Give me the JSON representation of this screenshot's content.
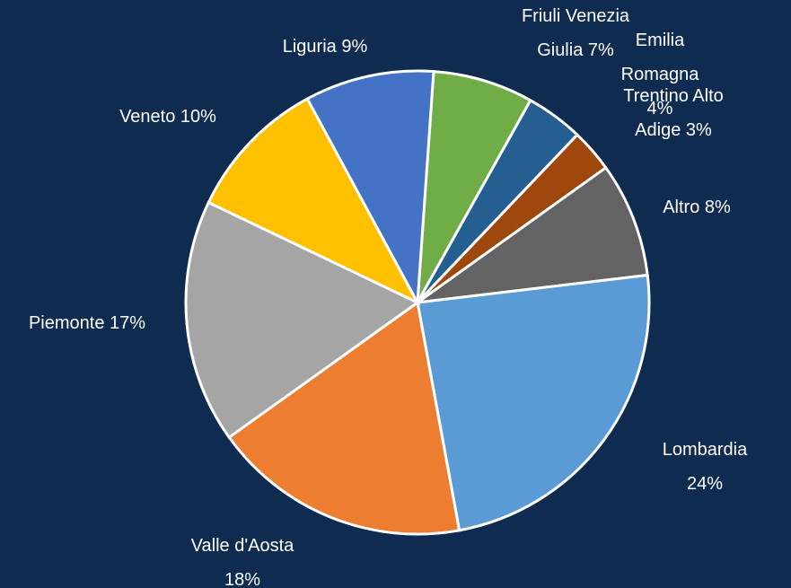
{
  "chart_data": {
    "type": "pie",
    "start_angle": 4,
    "value_labels": [
      "Friuli Venezia\nGiulia 7%",
      "Emilia Romagna\n4%",
      "Trentino Alto\nAdige 3%",
      "Altro  8%",
      "Lombardia 24%",
      "Valle d'Aosta\n18%",
      "Piemonte 17%",
      "Veneto 10%",
      "Liguria 9%"
    ],
    "values": [
      7,
      4,
      3,
      8,
      24,
      18,
      17,
      10,
      9
    ],
    "colors": [
      "#70ad47",
      "#255e91",
      "#9e480e",
      "#636363",
      "#5b9bd5",
      "#ed7d31",
      "#a5a5a5",
      "#ffc000",
      "#4472c4"
    ]
  }
}
